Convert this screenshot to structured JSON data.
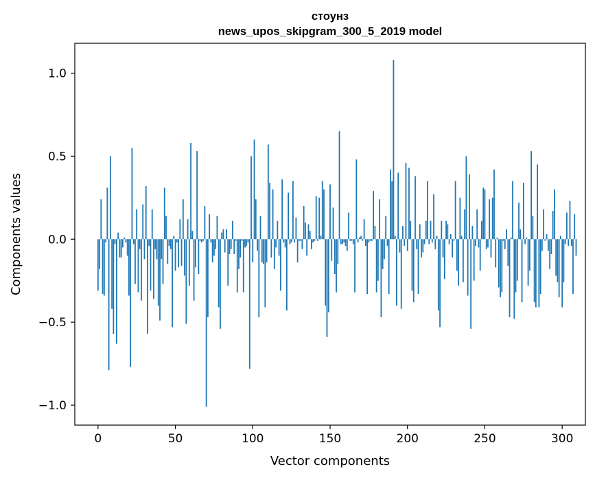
{
  "chart_data": {
    "type": "bar",
    "title": "стоунз",
    "subtitle": "news_upos_skipgram_300_5_2019 model",
    "xlabel": "Vector components",
    "ylabel": "Components values",
    "xlim": [
      -15,
      315
    ],
    "ylim": [
      -1.12,
      1.18
    ],
    "xticks": [
      0,
      50,
      100,
      150,
      200,
      250,
      300
    ],
    "yticks": [
      -1.0,
      -0.5,
      0.0,
      0.5,
      1.0
    ],
    "ytick_labels": [
      "−1.0",
      "−0.5",
      "0.0",
      "0.5",
      "1.0"
    ],
    "bar_color": "#1f77b4",
    "grid": false,
    "values": [
      -0.31,
      -0.18,
      0.24,
      -0.33,
      -0.34,
      -0.02,
      0.31,
      -0.79,
      0.5,
      -0.42,
      -0.57,
      -0.03,
      -0.63,
      0.04,
      -0.11,
      -0.11,
      -0.05,
      0.01,
      -0.02,
      -0.1,
      -0.34,
      -0.77,
      0.55,
      -0.03,
      -0.27,
      0.18,
      -0.32,
      -0.06,
      -0.37,
      0.21,
      -0.12,
      0.32,
      -0.57,
      -0.04,
      -0.31,
      0.18,
      -0.36,
      -0.06,
      -0.12,
      -0.4,
      -0.49,
      -0.12,
      -0.27,
      0.31,
      0.14,
      -0.15,
      -0.04,
      -0.06,
      -0.53,
      0.02,
      -0.19,
      -0.02,
      -0.17,
      0.12,
      -0.16,
      0.24,
      -0.22,
      -0.51,
      0.12,
      -0.28,
      0.58,
      0.05,
      -0.37,
      -0.17,
      0.53,
      -0.21,
      -0.01,
      -0.02,
      -0.01,
      0.2,
      -1.01,
      -0.47,
      0.15,
      -0.02,
      -0.14,
      -0.1,
      -0.06,
      0.14,
      -0.41,
      -0.54,
      0.04,
      0.06,
      -0.08,
      0.06,
      -0.28,
      -0.09,
      -0.06,
      0.11,
      -0.09,
      -0.01,
      -0.32,
      -0.18,
      -0.11,
      -0.01,
      -0.32,
      -0.05,
      -0.04,
      -0.02,
      -0.78,
      0.5,
      -0.14,
      0.6,
      0.24,
      -0.07,
      -0.47,
      0.14,
      -0.14,
      -0.15,
      -0.41,
      -0.14,
      0.57,
      0.34,
      -0.11,
      0.3,
      -0.18,
      -0.05,
      0.11,
      -0.1,
      -0.31,
      0.36,
      -0.02,
      -0.05,
      -0.43,
      0.28,
      -0.03,
      -0.02,
      0.35,
      -0.02,
      0.13,
      -0.14,
      -0.01,
      -0.01,
      -0.06,
      0.2,
      0.1,
      -0.1,
      0.09,
      0.05,
      -0.06,
      -0.02,
      -0.01,
      0.26,
      -0.01,
      0.25,
      0.02,
      0.35,
      0.3,
      -0.4,
      -0.59,
      -0.44,
      0.33,
      -0.13,
      0.19,
      -0.21,
      -0.32,
      -0.15,
      0.65,
      -0.03,
      -0.03,
      -0.02,
      -0.04,
      -0.07,
      0.16,
      -0.01,
      -0.01,
      -0.03,
      -0.32,
      0.48,
      -0.02,
      0.01,
      0.02,
      -0.01,
      0.12,
      -0.04,
      -0.33,
      -0.02,
      -0.01,
      -0.01,
      0.29,
      0.08,
      -0.32,
      -0.25,
      0.24,
      -0.47,
      -0.18,
      -0.12,
      0.14,
      -0.04,
      -0.33,
      0.42,
      0.35,
      1.08,
      0.02,
      -0.4,
      0.4,
      -0.08,
      -0.42,
      0.08,
      -0.04,
      0.46,
      -0.07,
      0.43,
      0.11,
      -0.31,
      -0.38,
      0.38,
      -0.06,
      -0.33,
      0.09,
      -0.11,
      -0.08,
      -0.03,
      0.11,
      0.35,
      -0.03,
      0.11,
      -0.02,
      0.27,
      -0.06,
      0.02,
      -0.43,
      -0.53,
      0.11,
      -0.11,
      -0.24,
      0.11,
      0.09,
      -0.03,
      0.03,
      -0.11,
      -0.01,
      0.35,
      -0.19,
      -0.28,
      0.25,
      0.02,
      -0.26,
      0.18,
      0.5,
      -0.34,
      0.39,
      -0.54,
      0.08,
      -0.25,
      -0.04,
      0.18,
      -0.05,
      -0.19,
      0.11,
      0.31,
      0.3,
      -0.06,
      -0.05,
      0.24,
      -0.11,
      0.25,
      0.42,
      -0.17,
      0.01,
      -0.29,
      -0.35,
      -0.32,
      -0.01,
      -0.06,
      0.06,
      -0.16,
      -0.47,
      0.01,
      0.35,
      -0.48,
      -0.32,
      -0.25,
      0.22,
      0.06,
      -0.38,
      0.34,
      -0.03,
      0.01,
      -0.28,
      -0.19,
      0.53,
      0.14,
      -0.38,
      -0.41,
      0.45,
      -0.41,
      -0.33,
      -0.07,
      0.18,
      -0.01,
      0.03,
      -0.07,
      -0.18,
      -0.09,
      0.17,
      0.3,
      -0.22,
      -0.26,
      -0.35,
      0.02,
      -0.41,
      -0.26,
      -0.03,
      0.16,
      -0.04,
      0.23,
      -0.04,
      -0.33,
      0.15,
      -0.1
    ]
  }
}
